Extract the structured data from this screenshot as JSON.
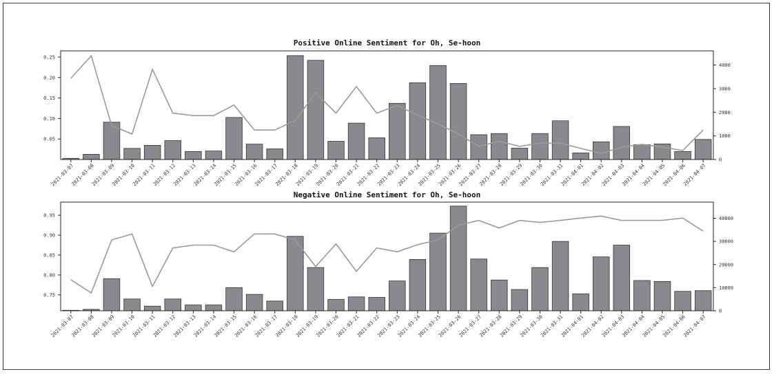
{
  "chart_data": [
    {
      "type": "bar",
      "title": "Positive Online Sentiment for Oh, Se-hoon",
      "categories": [
        "2021-03-07",
        "2021-03-08",
        "2021-03-09",
        "2021-03-10",
        "2021-03-11",
        "2021-03-12",
        "2021-03-13",
        "2021-03-14",
        "2021-03-15",
        "2021-03-16",
        "2021-03-17",
        "2021-03-18",
        "2021-03-19",
        "2021-03-20",
        "2021-03-21",
        "2021-03-22",
        "2021-03-23",
        "2021-03-24",
        "2021-03-25",
        "2021-03-26",
        "2021-03-27",
        "2021-03-28",
        "2021-03-29",
        "2021-03-30",
        "2021-03-31",
        "2021-04-01",
        "2021-04-02",
        "2021-04-03",
        "2021-04-04",
        "2021-04-05",
        "2021-04-06",
        "2021-04-07"
      ],
      "series": [
        {
          "type": "bar",
          "axis": "right",
          "values": [
            50,
            220,
            1580,
            470,
            600,
            800,
            340,
            360,
            1780,
            650,
            450,
            4400,
            4200,
            770,
            1540,
            920,
            2380,
            3250,
            3980,
            3220,
            1050,
            1100,
            480,
            1100,
            1640,
            280,
            750,
            1400,
            630,
            660,
            340,
            850
          ]
        },
        {
          "type": "line",
          "axis": "left",
          "values": [
            0.198,
            0.253,
            0.083,
            0.062,
            0.22,
            0.113,
            0.107,
            0.107,
            0.133,
            0.072,
            0.072,
            0.095,
            0.163,
            0.113,
            0.178,
            0.113,
            0.132,
            0.108,
            0.087,
            0.062,
            0.032,
            0.045,
            0.032,
            0.04,
            0.04,
            0.027,
            0.015,
            0.03,
            0.037,
            0.03,
            0.022,
            0.072
          ]
        }
      ],
      "y_left_ticks": [
        "0.05",
        "0.10",
        "0.15",
        "0.20",
        "0.25"
      ],
      "y_left_range": [
        0.0,
        0.265
      ],
      "y_right_ticks": [
        "0",
        "1000",
        "2000",
        "3000",
        "4000"
      ],
      "y_right_range": [
        0,
        4600
      ]
    },
    {
      "type": "bar",
      "title": "Negative Online Sentiment for Oh, Se-hoon",
      "categories": [
        "2021-03-07",
        "2021-03-08",
        "2021-03-09",
        "2021-03-10",
        "2021-03-11",
        "2021-03-12",
        "2021-03-13",
        "2021-03-14",
        "2021-03-15",
        "2021-03-16",
        "2021-03-17",
        "2021-03-18",
        "2021-03-19",
        "2021-03-20",
        "2021-03-21",
        "2021-03-22",
        "2021-03-23",
        "2021-03-24",
        "2021-03-25",
        "2021-03-26",
        "2021-03-27",
        "2021-03-28",
        "2021-03-29",
        "2021-03-30",
        "2021-03-31",
        "2021-04-01",
        "2021-04-02",
        "2021-04-03",
        "2021-04-04",
        "2021-04-05",
        "2021-04-06",
        "2021-04-07"
      ],
      "series": [
        {
          "type": "bar",
          "axis": "right",
          "values": [
            200,
            600,
            13900,
            5100,
            2000,
            5100,
            2500,
            2500,
            10000,
            7100,
            4200,
            32200,
            18700,
            4900,
            6000,
            5800,
            12900,
            22200,
            33600,
            45300,
            22400,
            13300,
            9200,
            18700,
            30000,
            7300,
            23300,
            28400,
            13100,
            12700,
            8400,
            8700
          ]
        },
        {
          "type": "line",
          "axis": "left",
          "values": [
            0.788,
            0.755,
            0.888,
            0.903,
            0.771,
            0.868,
            0.875,
            0.875,
            0.858,
            0.903,
            0.903,
            0.888,
            0.821,
            0.878,
            0.809,
            0.868,
            0.858,
            0.876,
            0.888,
            0.925,
            0.937,
            0.918,
            0.937,
            0.932,
            0.937,
            0.943,
            0.948,
            0.937,
            0.937,
            0.937,
            0.943,
            0.91
          ]
        }
      ],
      "y_left_ticks": [
        "0.75",
        "0.80",
        "0.85",
        "0.90",
        "0.95"
      ],
      "y_left_range": [
        0.71,
        0.983
      ],
      "y_right_ticks": [
        "0",
        "10000",
        "20000",
        "30000",
        "40000"
      ],
      "y_right_range": [
        0,
        47000
      ]
    }
  ]
}
